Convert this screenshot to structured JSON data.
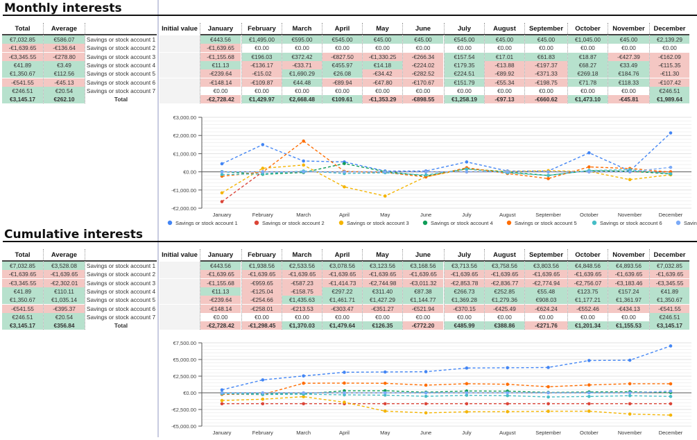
{
  "months": [
    "January",
    "February",
    "March",
    "April",
    "May",
    "June",
    "July",
    "August",
    "September",
    "October",
    "November",
    "December"
  ],
  "headers": {
    "total": "Total",
    "average": "Average",
    "initial": "Initial value"
  },
  "accounts": [
    "Savings or stock account 1",
    "Savings or stock account 2",
    "Savings or stock account 3",
    "Savings or stock account 4",
    "Savings or stock account 5",
    "Savings or stock account 6",
    "Savings or stock account 7"
  ],
  "total_label": "Total",
  "colors": {
    "positive": "#b7e1cd",
    "negative": "#f4c7c3",
    "initial": "#f3f3f3",
    "series": [
      "#4285f4",
      "#db4437",
      "#f4b400",
      "#0f9d58",
      "#ff6d01",
      "#46bdc6",
      "#7baaf7"
    ]
  },
  "monthly": {
    "title": "Monthly interests",
    "rows": [
      {
        "total": "€7,032.85",
        "average": "€586.07",
        "values": [
          "€443.56",
          "€1,495.00",
          "€595.00",
          "€545.00",
          "€45.00",
          "€45.00",
          "€545.00",
          "€45.00",
          "€45.00",
          "€1,045.00",
          "€45.00",
          "€2,139.29"
        ]
      },
      {
        "total": "-€1,639.65",
        "average": "-€136.64",
        "values": [
          "-€1,639.65",
          "€0.00",
          "€0.00",
          "€0.00",
          "€0.00",
          "€0.00",
          "€0.00",
          "€0.00",
          "€0.00",
          "€0.00",
          "€0.00",
          "€0.00"
        ]
      },
      {
        "total": "-€3,345.55",
        "average": "-€278.80",
        "values": [
          "-€1,155.68",
          "€196.03",
          "€372.42",
          "-€827.50",
          "-€1,330.25",
          "-€266.34",
          "€157.54",
          "€17.01",
          "€61.83",
          "€18.87",
          "-€427.39",
          "-€162.09"
        ]
      },
      {
        "total": "€41.89",
        "average": "€3.49",
        "values": [
          "€11.13",
          "-€136.17",
          "-€33.71",
          "€455.97",
          "€14.18",
          "-€224.02",
          "€179.35",
          "-€13.88",
          "-€197.37",
          "€68.27",
          "€33.49",
          "-€115.35"
        ]
      },
      {
        "total": "€1,350.67",
        "average": "€112.56",
        "values": [
          "-€239.64",
          "-€15.02",
          "€1,690.29",
          "€26.08",
          "-€34.42",
          "-€282.52",
          "€224.51",
          "-€89.92",
          "-€371.33",
          "€269.18",
          "€184.76",
          "-€11.30"
        ]
      },
      {
        "total": "-€541.55",
        "average": "-€45.13",
        "values": [
          "-€148.14",
          "-€109.87",
          "€44.48",
          "-€89.94",
          "-€47.80",
          "-€170.67",
          "€151.79",
          "-€55.34",
          "-€198.75",
          "€71.78",
          "€118.33",
          "-€107.42"
        ]
      },
      {
        "total": "€246.51",
        "average": "€20.54",
        "values": [
          "€0.00",
          "€0.00",
          "€0.00",
          "€0.00",
          "€0.00",
          "€0.00",
          "€0.00",
          "€0.00",
          "€0.00",
          "€0.00",
          "€0.00",
          "€246.51"
        ]
      },
      {
        "total": "€3,145.17",
        "average": "€262.10",
        "values": [
          "-€2,728.42",
          "€1,429.97",
          "€2,668.48",
          "€109.61",
          "-€1,353.29",
          "-€898.55",
          "€1,258.19",
          "-€97.13",
          "-€660.62",
          "€1,473.10",
          "-€45.81",
          "€1,989.64"
        ]
      }
    ]
  },
  "cumulative": {
    "title": "Cumulative interests",
    "rows": [
      {
        "total": "€7,032.85",
        "average": "€3,528.08",
        "values": [
          "€443.56",
          "€1,938.56",
          "€2,533.56",
          "€3,078.56",
          "€3,123.56",
          "€3,168.56",
          "€3,713.56",
          "€3,758.56",
          "€3,803.56",
          "€4,848.56",
          "€4,893.56",
          "€7,032.85"
        ]
      },
      {
        "total": "-€1,639.65",
        "average": "-€1,639.65",
        "values": [
          "-€1,639.65",
          "-€1,639.65",
          "-€1,639.65",
          "-€1,639.65",
          "-€1,639.65",
          "-€1,639.65",
          "-€1,639.65",
          "-€1,639.65",
          "-€1,639.65",
          "-€1,639.65",
          "-€1,639.65",
          "-€1,639.65"
        ]
      },
      {
        "total": "-€3,345.55",
        "average": "-€2,302.01",
        "values": [
          "-€1,155.68",
          "-€959.65",
          "-€587.23",
          "-€1,414.73",
          "-€2,744.98",
          "-€3,011.32",
          "-€2,853.78",
          "-€2,836.77",
          "-€2,774.94",
          "-€2,756.07",
          "-€3,183.46",
          "-€3,345.55"
        ]
      },
      {
        "total": "€41.89",
        "average": "€110.11",
        "values": [
          "€11.13",
          "-€125.04",
          "-€158.75",
          "€297.22",
          "€311.40",
          "€87.38",
          "€266.73",
          "€252.85",
          "€55.48",
          "€123.75",
          "€157.24",
          "€41.89"
        ]
      },
      {
        "total": "€1,350.67",
        "average": "€1,035.14",
        "values": [
          "-€239.64",
          "-€254.66",
          "€1,435.63",
          "€1,461.71",
          "€1,427.29",
          "€1,144.77",
          "€1,369.28",
          "€1,279.36",
          "€908.03",
          "€1,177.21",
          "€1,361.97",
          "€1,350.67"
        ]
      },
      {
        "total": "-€541.55",
        "average": "-€395.37",
        "values": [
          "-€148.14",
          "-€258.01",
          "-€213.53",
          "-€303.47",
          "-€351.27",
          "-€521.94",
          "-€370.15",
          "-€425.49",
          "-€624.24",
          "-€552.46",
          "-€434.13",
          "-€541.55"
        ]
      },
      {
        "total": "€246.51",
        "average": "€20.54",
        "values": [
          "€0.00",
          "€0.00",
          "€0.00",
          "€0.00",
          "€0.00",
          "€0.00",
          "€0.00",
          "€0.00",
          "€0.00",
          "€0.00",
          "€0.00",
          "€246.51"
        ]
      },
      {
        "total": "€3,145.17",
        "average": "€356.84",
        "values": [
          "-€2,728.42",
          "-€1,298.45",
          "€1,370.03",
          "€1,479.64",
          "€126.35",
          "-€772.20",
          "€485.99",
          "€388.86",
          "-€271.76",
          "€1,201.34",
          "€1,155.53",
          "€3,145.17"
        ]
      }
    ]
  },
  "chart_data": [
    {
      "type": "line",
      "title": "",
      "categories": [
        "January",
        "February",
        "March",
        "April",
        "May",
        "June",
        "July",
        "August",
        "September",
        "October",
        "November",
        "December"
      ],
      "ylim": [
        -2000,
        3000
      ],
      "yticks": [
        3000,
        2000,
        1000,
        0,
        -1000,
        -2000
      ],
      "ytick_labels": [
        "€3,000.00",
        "€2,000.00",
        "€1,000.00",
        "€0.00",
        "-€1,000.00",
        "-€2,000.00"
      ],
      "grid": true,
      "legend": "bottom",
      "series": [
        {
          "name": "Savings or stock account 1",
          "values": [
            443.56,
            1495,
            595,
            545,
            45,
            45,
            545,
            45,
            45,
            1045,
            45,
            2139.29
          ]
        },
        {
          "name": "Savings or stock account 2",
          "values": [
            -1639.65,
            0,
            0,
            0,
            0,
            0,
            0,
            0,
            0,
            0,
            0,
            0
          ]
        },
        {
          "name": "Savings or stock account 3",
          "values": [
            -1155.68,
            196.03,
            372.42,
            -827.5,
            -1330.25,
            -266.34,
            157.54,
            17.01,
            61.83,
            18.87,
            -427.39,
            -162.09
          ]
        },
        {
          "name": "Savings or stock account 4",
          "values": [
            11.13,
            -136.17,
            -33.71,
            455.97,
            14.18,
            -224.02,
            179.35,
            -13.88,
            -197.37,
            68.27,
            33.49,
            -115.35
          ]
        },
        {
          "name": "Savings or stock account 5",
          "values": [
            -239.64,
            -15.02,
            1690.29,
            26.08,
            -34.42,
            -282.52,
            224.51,
            -89.92,
            -371.33,
            269.18,
            184.76,
            -11.3
          ]
        },
        {
          "name": "Savings or stock account 6",
          "values": [
            -148.14,
            -109.87,
            44.48,
            -89.94,
            -47.8,
            -170.67,
            151.79,
            -55.34,
            -198.75,
            71.78,
            118.33,
            -107.42
          ]
        },
        {
          "name": "Savings or stock account 7",
          "values": [
            0,
            0,
            0,
            0,
            0,
            0,
            0,
            0,
            0,
            0,
            0,
            246.51
          ]
        }
      ]
    },
    {
      "type": "line",
      "title": "",
      "categories": [
        "January",
        "February",
        "March",
        "April",
        "May",
        "June",
        "July",
        "August",
        "September",
        "October",
        "November",
        "December"
      ],
      "ylim": [
        -5000,
        7500
      ],
      "yticks": [
        7500,
        5000,
        2500,
        0,
        -2500,
        -5000
      ],
      "ytick_labels": [
        "€7,500.00",
        "€5,000.00",
        "€2,500.00",
        "€0.00",
        "-€2,500.00",
        "-€5,000.00"
      ],
      "grid": true,
      "legend": "none",
      "series": [
        {
          "name": "Savings or stock account 1",
          "values": [
            443.56,
            1938.56,
            2533.56,
            3078.56,
            3123.56,
            3168.56,
            3713.56,
            3758.56,
            3803.56,
            4848.56,
            4893.56,
            7032.85
          ]
        },
        {
          "name": "Savings or stock account 2",
          "values": [
            -1639.65,
            -1639.65,
            -1639.65,
            -1639.65,
            -1639.65,
            -1639.65,
            -1639.65,
            -1639.65,
            -1639.65,
            -1639.65,
            -1639.65,
            -1639.65
          ]
        },
        {
          "name": "Savings or stock account 3",
          "values": [
            -1155.68,
            -959.65,
            -587.23,
            -1414.73,
            -2744.98,
            -3011.32,
            -2853.78,
            -2836.77,
            -2774.94,
            -2756.07,
            -3183.46,
            -3345.55
          ]
        },
        {
          "name": "Savings or stock account 4",
          "values": [
            11.13,
            -125.04,
            -158.75,
            297.22,
            311.4,
            87.38,
            266.73,
            252.85,
            55.48,
            123.75,
            157.24,
            41.89
          ]
        },
        {
          "name": "Savings or stock account 5",
          "values": [
            -239.64,
            -254.66,
            1435.63,
            1461.71,
            1427.29,
            1144.77,
            1369.28,
            1279.36,
            908.03,
            1177.21,
            1361.97,
            1350.67
          ]
        },
        {
          "name": "Savings or stock account 6",
          "values": [
            -148.14,
            -258.01,
            -213.53,
            -303.47,
            -351.27,
            -521.94,
            -370.15,
            -425.49,
            -624.24,
            -552.46,
            -434.13,
            -541.55
          ]
        },
        {
          "name": "Savings or stock account 7",
          "values": [
            0,
            0,
            0,
            0,
            0,
            0,
            0,
            0,
            0,
            0,
            0,
            246.51
          ]
        }
      ]
    }
  ]
}
